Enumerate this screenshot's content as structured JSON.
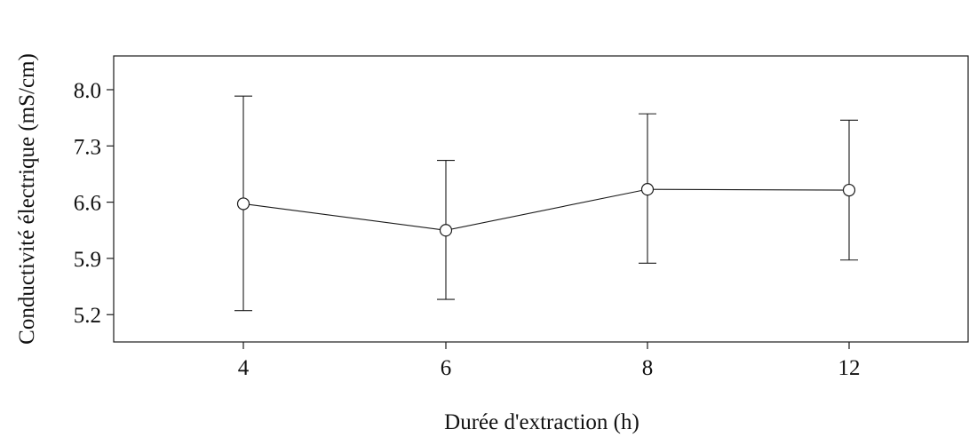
{
  "chart_data": {
    "type": "line",
    "title": "",
    "xlabel": "Durée d'extraction (h)",
    "ylabel": "Conductivité électrique (mS/cm)",
    "categories": [
      "4",
      "6",
      "8",
      "12"
    ],
    "series": [
      {
        "values": [
          6.58,
          6.25,
          6.76,
          6.75
        ],
        "error_low": [
          5.25,
          5.39,
          5.84,
          5.88
        ],
        "error_high": [
          7.92,
          7.12,
          7.7,
          7.62
        ]
      }
    ],
    "y_ticks": [
      "5.2",
      "5.9",
      "6.6",
      "7.3",
      "8.0"
    ],
    "ylim": [
      4.86,
      8.42
    ],
    "grid": false,
    "legend": "none",
    "colors": {
      "line": "#1a1a1a",
      "marker": "#1a1a1a",
      "axis": "#1a1a1a"
    }
  }
}
